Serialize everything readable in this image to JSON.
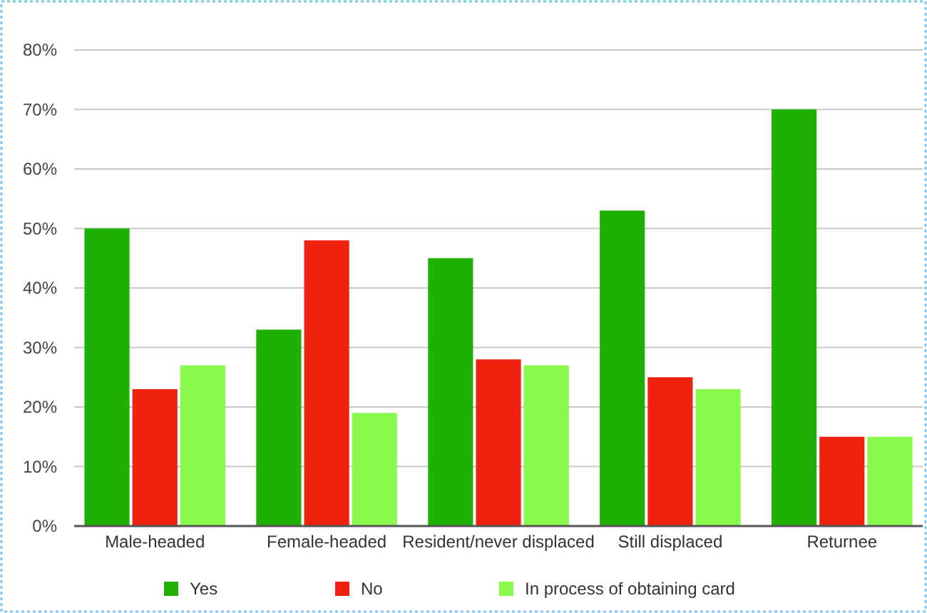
{
  "chart_data": {
    "type": "bar",
    "categories": [
      "Male-headed",
      "Female-headed",
      "Resident/never displaced",
      "Still displaced",
      "Returnee"
    ],
    "series": [
      {
        "name": "Yes",
        "color": "#1eb104",
        "values": [
          50,
          33,
          45,
          53,
          70
        ]
      },
      {
        "name": "No",
        "color": "#ee220f",
        "values": [
          23,
          48,
          28,
          25,
          15
        ]
      },
      {
        "name": "In process of obtaining card",
        "color": "#88fa4e",
        "values": [
          27,
          19,
          27,
          23,
          15
        ]
      }
    ],
    "ylim": [
      0,
      80
    ],
    "yticks": [
      {
        "value": 0,
        "label": "0%"
      },
      {
        "value": 10,
        "label": "10%"
      },
      {
        "value": 20,
        "label": "20%"
      },
      {
        "value": 30,
        "label": "30%"
      },
      {
        "value": 40,
        "label": "40%"
      },
      {
        "value": 50,
        "label": "50%"
      },
      {
        "value": 60,
        "label": "60%"
      },
      {
        "value": 70,
        "label": "70%"
      },
      {
        "value": 80,
        "label": "80%"
      }
    ],
    "grid": "y",
    "legend": "bottom"
  }
}
